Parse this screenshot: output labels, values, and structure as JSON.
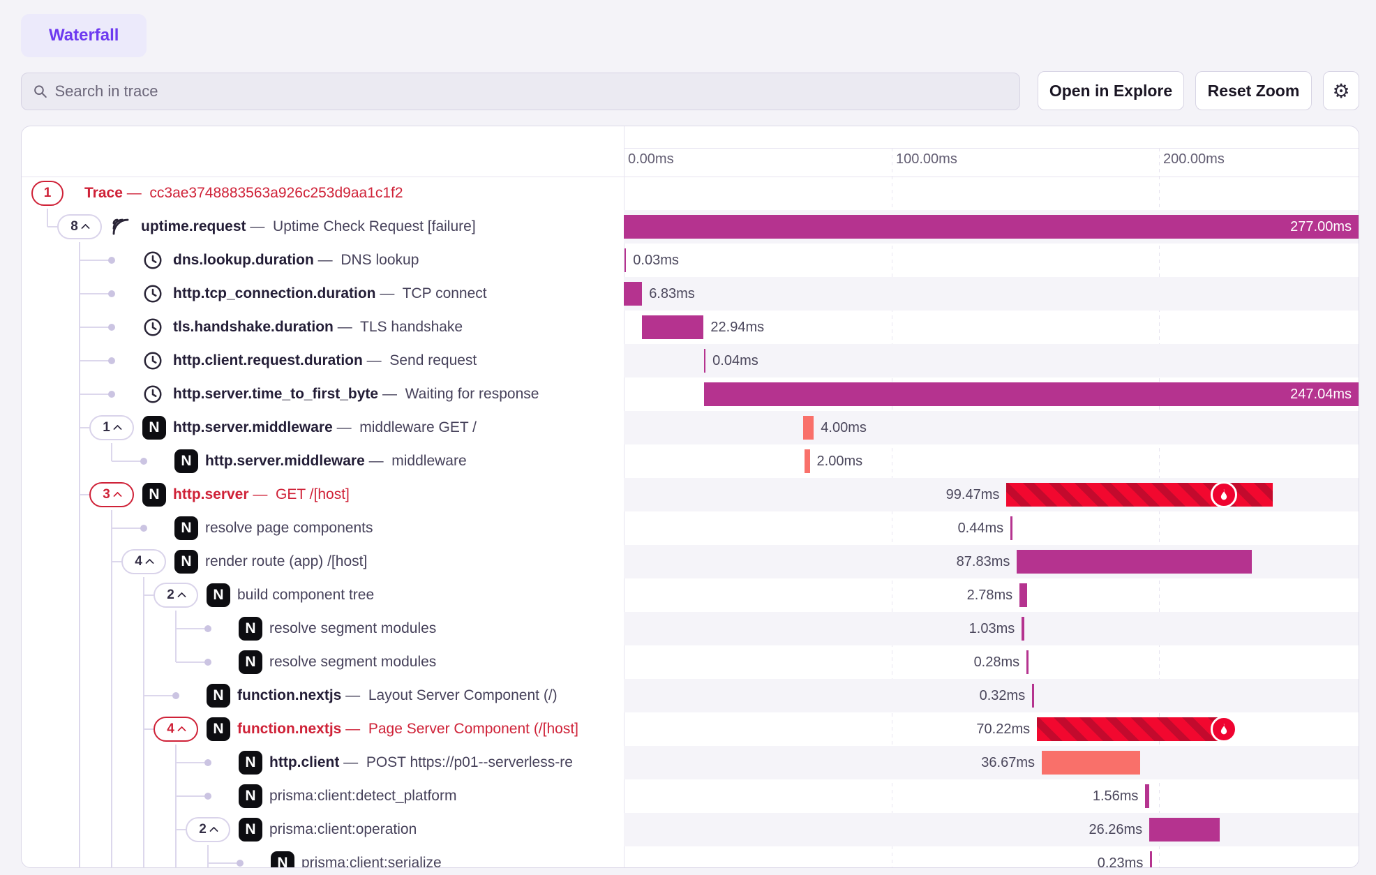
{
  "tab": {
    "label": "Waterfall"
  },
  "toolbar": {
    "search_placeholder": "Search in trace",
    "open_explore_label": "Open in Explore",
    "reset_zoom_label": "Reset Zoom",
    "settings_icon": "gear-icon"
  },
  "timeline": {
    "ticks": [
      "0.00ms",
      "100.00ms",
      "200.00ms"
    ],
    "tick_ms": [
      0,
      100,
      200
    ],
    "total_ms": 277
  },
  "colors": {
    "magenta": "#b5338f",
    "salmon": "#f9706a",
    "error_red": "#f2082f",
    "error_stripe": "#c30a2d",
    "red_text": "#cf2137",
    "accent_purple": "#6d39f0"
  },
  "error_event_ms": 224.3,
  "rows": [
    {
      "pill": "1",
      "chevron": false,
      "red": true,
      "level": 0,
      "icon": null,
      "dot": false,
      "op": "Trace",
      "desc": "cc3ae3748883563a926c253d9aa1c1f2",
      "bar": null
    },
    {
      "pill": "8",
      "chevron": true,
      "red": false,
      "level": 1,
      "icon": "uptime",
      "dot": false,
      "op": "uptime.request",
      "desc": "Uptime Check Request [failure]",
      "bar": {
        "start": 0,
        "dur": 277.0,
        "label": "277.00ms",
        "pos": "inside",
        "color": "magenta",
        "fire": false
      }
    },
    {
      "pill": null,
      "chevron": false,
      "red": false,
      "level": 2,
      "icon": "clock",
      "dot": true,
      "op": "dns.lookup.duration",
      "desc": "DNS lookup",
      "bar": {
        "start": 0.2,
        "dur": 0.03,
        "label": "0.03ms",
        "pos": "right",
        "color": "magenta",
        "fire": false
      }
    },
    {
      "pill": null,
      "chevron": false,
      "red": false,
      "level": 2,
      "icon": "clock",
      "dot": true,
      "op": "http.tcp_connection.duration",
      "desc": "TCP connect",
      "bar": {
        "start": 0,
        "dur": 6.83,
        "label": "6.83ms",
        "pos": "right",
        "color": "magenta",
        "fire": false
      }
    },
    {
      "pill": null,
      "chevron": false,
      "red": false,
      "level": 2,
      "icon": "clock",
      "dot": true,
      "op": "tls.handshake.duration",
      "desc": "TLS handshake",
      "bar": {
        "start": 6.9,
        "dur": 22.94,
        "label": "22.94ms",
        "pos": "right",
        "color": "magenta",
        "fire": false
      }
    },
    {
      "pill": null,
      "chevron": false,
      "red": false,
      "level": 2,
      "icon": "clock",
      "dot": true,
      "op": "http.client.request.duration",
      "desc": "Send request",
      "bar": {
        "start": 29.9,
        "dur": 0.04,
        "label": "0.04ms",
        "pos": "right",
        "color": "magenta",
        "fire": false
      }
    },
    {
      "pill": null,
      "chevron": false,
      "red": false,
      "level": 2,
      "icon": "clock",
      "dot": true,
      "op": "http.server.time_to_first_byte",
      "desc": "Waiting for response",
      "bar": {
        "start": 30,
        "dur": 247.04,
        "label": "247.04ms",
        "pos": "inside",
        "color": "magenta",
        "fire": false
      }
    },
    {
      "pill": "1",
      "chevron": true,
      "red": false,
      "level": 2,
      "icon": "nextjs",
      "dot": false,
      "op": "http.server.middleware",
      "desc": "middleware GET /",
      "bar": {
        "start": 67,
        "dur": 4.0,
        "label": "4.00ms",
        "pos": "right",
        "color": "salmon",
        "fire": false
      }
    },
    {
      "pill": null,
      "chevron": false,
      "red": false,
      "level": 3,
      "icon": "nextjs",
      "dot": true,
      "op": "http.server.middleware",
      "desc": "middleware",
      "bar": {
        "start": 67.5,
        "dur": 2.0,
        "label": "2.00ms",
        "pos": "right",
        "color": "salmon",
        "fire": false
      }
    },
    {
      "pill": "3",
      "chevron": true,
      "red": true,
      "level": 2,
      "icon": "nextjs",
      "dot": false,
      "op": "http.server",
      "desc": "GET /[host]",
      "bar": {
        "start": 143,
        "dur": 99.47,
        "label": "99.47ms",
        "pos": "left",
        "color": "error",
        "fire": true
      }
    },
    {
      "pill": null,
      "chevron": false,
      "red": false,
      "level": 3,
      "icon": "nextjs",
      "dot": true,
      "op": "resolve page components",
      "desc": null,
      "bar": {
        "start": 144.5,
        "dur": 0.44,
        "label": "0.44ms",
        "pos": "left",
        "color": "magenta",
        "fire": false
      }
    },
    {
      "pill": "4",
      "chevron": true,
      "red": false,
      "level": 3,
      "icon": "nextjs",
      "dot": false,
      "op": "render route (app) /[host]",
      "desc": null,
      "bar": {
        "start": 146.9,
        "dur": 87.83,
        "label": "87.83ms",
        "pos": "left",
        "color": "magenta",
        "fire": false
      }
    },
    {
      "pill": "2",
      "chevron": true,
      "red": false,
      "level": 4,
      "icon": "nextjs",
      "dot": false,
      "op": "build component tree",
      "desc": null,
      "bar": {
        "start": 147.9,
        "dur": 2.78,
        "label": "2.78ms",
        "pos": "left",
        "color": "magenta",
        "fire": false
      }
    },
    {
      "pill": null,
      "chevron": false,
      "red": false,
      "level": 5,
      "icon": "nextjs",
      "dot": true,
      "op": "resolve segment modules",
      "desc": null,
      "bar": {
        "start": 148.7,
        "dur": 1.03,
        "label": "1.03ms",
        "pos": "left",
        "color": "magenta",
        "fire": false
      }
    },
    {
      "pill": null,
      "chevron": false,
      "red": false,
      "level": 5,
      "icon": "nextjs",
      "dot": true,
      "op": "resolve segment modules",
      "desc": null,
      "bar": {
        "start": 150.5,
        "dur": 0.28,
        "label": "0.28ms",
        "pos": "left",
        "color": "magenta",
        "fire": false
      }
    },
    {
      "pill": null,
      "chevron": false,
      "red": false,
      "level": 4,
      "icon": "nextjs",
      "dot": true,
      "op": "function.nextjs",
      "desc": "Layout Server Component (/)",
      "bar": {
        "start": 152.6,
        "dur": 0.32,
        "label": "0.32ms",
        "pos": "left",
        "color": "magenta",
        "fire": false
      }
    },
    {
      "pill": "4",
      "chevron": true,
      "red": true,
      "level": 4,
      "icon": "nextjs",
      "dot": false,
      "op": "function.nextjs",
      "desc": "Page Server Component (/[host]",
      "bar": {
        "start": 154.4,
        "dur": 70.22,
        "label": "70.22ms",
        "pos": "left",
        "color": "error",
        "fire": true
      }
    },
    {
      "pill": null,
      "chevron": false,
      "red": false,
      "level": 5,
      "icon": "nextjs",
      "dot": true,
      "op": "http.client",
      "desc": "POST https://p01--serverless-re",
      "bar": {
        "start": 156.2,
        "dur": 36.67,
        "label": "36.67ms",
        "pos": "left",
        "color": "salmon",
        "fire": false
      }
    },
    {
      "pill": null,
      "chevron": false,
      "red": false,
      "level": 5,
      "icon": "nextjs",
      "dot": true,
      "op": "prisma:client:detect_platform",
      "desc": null,
      "bar": {
        "start": 194.9,
        "dur": 1.56,
        "label": "1.56ms",
        "pos": "left",
        "color": "magenta",
        "fire": false
      }
    },
    {
      "pill": "2",
      "chevron": true,
      "red": false,
      "level": 5,
      "icon": "nextjs",
      "dot": false,
      "op": "prisma:client:operation",
      "desc": null,
      "bar": {
        "start": 196.4,
        "dur": 26.26,
        "label": "26.26ms",
        "pos": "left",
        "color": "magenta",
        "fire": false
      }
    },
    {
      "pill": null,
      "chevron": false,
      "red": false,
      "level": 6,
      "icon": "nextjs",
      "dot": true,
      "op": "prisma:client:serialize",
      "desc": null,
      "bar": {
        "start": 196.7,
        "dur": 0.23,
        "label": "0.23ms",
        "pos": "left",
        "color": "magenta",
        "fire": false
      }
    }
  ],
  "tree_guides": [
    {
      "level": 0,
      "from": 0,
      "to": 1
    },
    {
      "level": 1,
      "from": 1,
      "to": "end"
    },
    {
      "level": 2,
      "from": 7,
      "to": 8
    },
    {
      "level": 2,
      "from": 9,
      "to": "end"
    },
    {
      "level": 3,
      "from": 11,
      "to": "end"
    },
    {
      "level": 4,
      "from": 12,
      "to": 14
    },
    {
      "level": 4,
      "from": 16,
      "to": "end"
    },
    {
      "level": 5,
      "from": 19,
      "to": "end"
    }
  ]
}
